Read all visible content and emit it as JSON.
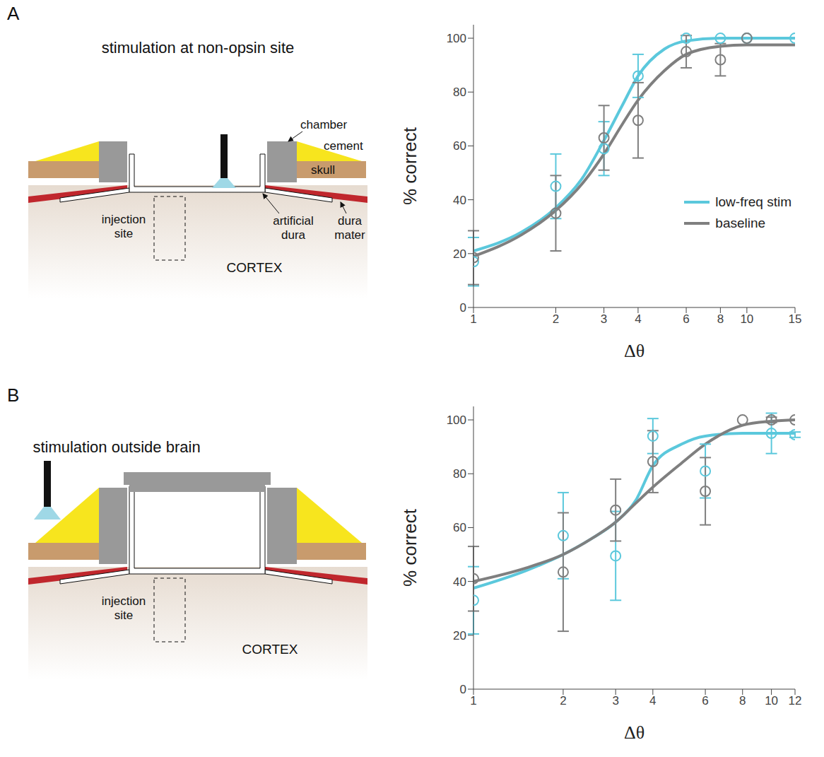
{
  "panel_labels": [
    "A",
    "B"
  ],
  "diagrams": [
    {
      "title": "stimulation at non-opsin site",
      "labels": {
        "chamber": "chamber",
        "cement": "cement",
        "skull": "skull",
        "injection": "injection site",
        "artificial_dura": "artificial dura",
        "dura": "dura mater",
        "cortex": "CORTEX"
      }
    },
    {
      "title": "stimulation outside brain",
      "labels": {
        "injection": "injection site",
        "cortex": "CORTEX"
      }
    }
  ],
  "chart_data": [
    {
      "type": "scatter",
      "xlabel": "Δθ",
      "ylabel": "% correct",
      "log": "x",
      "xlim": [
        1,
        15
      ],
      "xticks": [
        1,
        2,
        3,
        4,
        6,
        8,
        10,
        15
      ],
      "ylim": [
        0,
        105
      ],
      "yticks": [
        0,
        20,
        40,
        60,
        80,
        100
      ],
      "legend": "lower right",
      "series": [
        {
          "name": "low-freq stim",
          "color": "#5bc8dc",
          "x": [
            1,
            2,
            3,
            4,
            6,
            8,
            10,
            15
          ],
          "values": [
            17,
            45,
            59,
            86,
            100,
            100,
            100,
            100
          ],
          "error": [
            9,
            12,
            10,
            8,
            0,
            0,
            0,
            0
          ],
          "fit": {
            "x": [
              1,
              1.5,
              2,
              2.5,
              3,
              3.5,
              4,
              5,
              6,
              8,
              10,
              15
            ],
            "values": [
              21,
              28,
              37,
              48,
              62,
              75,
              86,
              96,
              99,
              100,
              100,
              100
            ]
          }
        },
        {
          "name": "baseline",
          "color": "#7f7f7f",
          "x": [
            1,
            2,
            3,
            4,
            6,
            8,
            10
          ],
          "values": [
            18.5,
            35,
            63,
            69.5,
            95,
            92,
            100
          ],
          "error": [
            10,
            14,
            12,
            14,
            6,
            6,
            0
          ],
          "fit": {
            "x": [
              1,
              1.5,
              2,
              2.5,
              3,
              3.5,
              4,
              5,
              6,
              8,
              10,
              15
            ],
            "values": [
              19,
              27,
              36,
              46,
              57,
              68,
              77,
              88,
              94,
              97,
              97.5,
              97.5
            ]
          }
        }
      ]
    },
    {
      "type": "scatter",
      "xlabel": "Δθ",
      "ylabel": "% correct",
      "log": "x",
      "xlim": [
        1,
        12
      ],
      "xticks": [
        1,
        2,
        3,
        4,
        6,
        8,
        10,
        12
      ],
      "ylim": [
        0,
        105
      ],
      "yticks": [
        0,
        20,
        40,
        60,
        80,
        100
      ],
      "series": [
        {
          "name": "low-freq stim",
          "color": "#5bc8dc",
          "x": [
            1,
            2,
            3,
            4,
            6,
            10,
            12
          ],
          "values": [
            33,
            57,
            49.5,
            94,
            81,
            95,
            94.5
          ],
          "error": [
            12.5,
            16,
            16.5,
            6.5,
            10,
            7.5,
            1
          ],
          "fit": {
            "x": [
              1,
              1.5,
              2,
              2.5,
              3,
              3.5,
              4,
              5,
              6,
              8,
              10,
              12
            ],
            "values": [
              37.5,
              44,
              50,
              56,
              62,
              70,
              83,
              91,
              94,
              95,
              95,
              95
            ]
          }
        },
        {
          "name": "baseline",
          "color": "#7f7f7f",
          "x": [
            1,
            2,
            3,
            4,
            6,
            8,
            10,
            12
          ],
          "values": [
            41,
            43.5,
            66.5,
            84.5,
            73.5,
            100,
            100,
            100
          ],
          "error": [
            12,
            22,
            11.5,
            11.5,
            12.5,
            0,
            1,
            0
          ],
          "fit": {
            "x": [
              1,
              1.5,
              2,
              2.5,
              3,
              3.5,
              4,
              5,
              6,
              8,
              10,
              12
            ],
            "values": [
              40,
              45,
              50,
              56,
              62,
              69,
              75,
              84,
              91,
              98,
              99.5,
              100
            ]
          }
        }
      ]
    }
  ]
}
